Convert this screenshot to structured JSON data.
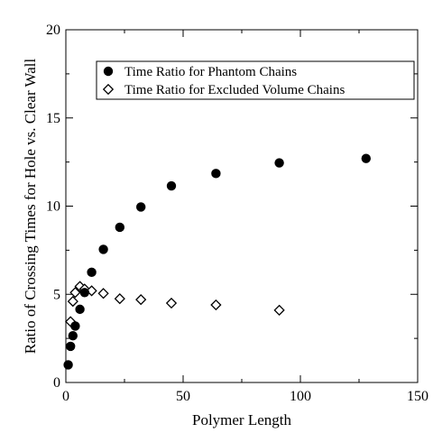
{
  "chart_data": {
    "type": "scatter",
    "title": "",
    "xlabel": "Polymer Length",
    "ylabel": "Ratio of Crossing Times for Hole vs. Clear Wall",
    "xlim": [
      0,
      150
    ],
    "ylim": [
      0,
      20
    ],
    "x_ticks": [
      "0",
      "50",
      "100",
      "150"
    ],
    "y_ticks": [
      "0",
      "5",
      "10",
      "15",
      "20"
    ],
    "grid": false,
    "legend_position": "top-right",
    "series": [
      {
        "name": "Time Ratio for Phantom Chains",
        "marker": "filled-circle",
        "color": "#000000",
        "points": [
          [
            1,
            1.0
          ],
          [
            2,
            2.05
          ],
          [
            3,
            2.65
          ],
          [
            4,
            3.2
          ],
          [
            6,
            4.15
          ],
          [
            8,
            5.1
          ],
          [
            11,
            6.25
          ],
          [
            16,
            7.55
          ],
          [
            23,
            8.8
          ],
          [
            32,
            9.95
          ],
          [
            45,
            11.15
          ],
          [
            64,
            11.85
          ],
          [
            91,
            12.45
          ],
          [
            128,
            12.7
          ]
        ]
      },
      {
        "name": "Time Ratio for Excluded Volume Chains",
        "marker": "open-diamond",
        "color": "#000000",
        "points": [
          [
            2,
            3.45
          ],
          [
            3,
            4.6
          ],
          [
            4,
            5.1
          ],
          [
            6,
            5.45
          ],
          [
            8,
            5.3
          ],
          [
            11,
            5.2
          ],
          [
            16,
            5.05
          ],
          [
            23,
            4.75
          ],
          [
            32,
            4.7
          ],
          [
            45,
            4.5
          ],
          [
            64,
            4.4
          ],
          [
            91,
            4.1
          ]
        ]
      }
    ]
  }
}
